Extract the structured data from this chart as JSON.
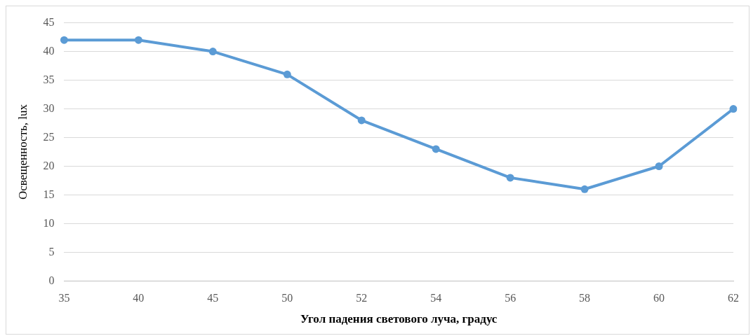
{
  "chart_data": {
    "type": "line",
    "xlabel": "Угол падения светового луча, градус",
    "ylabel": "Освещенность, lux",
    "categories": [
      "35",
      "40",
      "45",
      "50",
      "52",
      "54",
      "56",
      "58",
      "60",
      "62"
    ],
    "series": [
      {
        "color": "#5b9bd5",
        "values": [
          42,
          42,
          40,
          36,
          28,
          23,
          18,
          16,
          20,
          30
        ]
      }
    ],
    "ylim": [
      0,
      45
    ],
    "yticks": [
      0,
      5,
      10,
      15,
      20,
      25,
      30,
      35,
      40,
      45
    ],
    "grid": "y",
    "marker": "circle",
    "line_style": "solid",
    "legend": false
  }
}
